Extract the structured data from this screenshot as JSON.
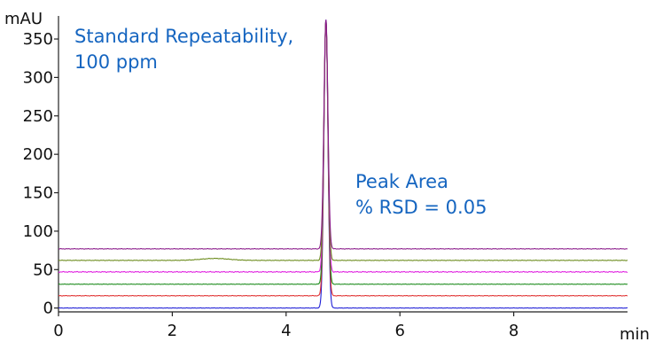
{
  "chart_data": {
    "type": "line",
    "title": "",
    "xlabel": "min",
    "ylabel": "mAU",
    "xlim": [
      0,
      10
    ],
    "ylim": [
      -5,
      380
    ],
    "x_ticks": [
      0,
      2,
      4,
      6,
      8
    ],
    "y_ticks": [
      0,
      50,
      100,
      150,
      200,
      250,
      300,
      350
    ],
    "grid": false,
    "legend": "none",
    "peak": {
      "x": 4.7,
      "width": 0.035
    },
    "annotations": [
      {
        "lines": [
          "Standard Repeatability,",
          "100 ppm"
        ],
        "color": "#1565c0"
      },
      {
        "lines": [
          "Peak Area",
          "% RSD = 0.05"
        ],
        "color": "#1565c0"
      }
    ],
    "series": [
      {
        "baseline": 0,
        "peak_height": 375,
        "color": "#1f1fd6",
        "noise": 0.25
      },
      {
        "baseline": 16,
        "peak_height": 356,
        "color": "#e03030",
        "noise": 0.35
      },
      {
        "baseline": 31,
        "peak_height": 342,
        "color": "#1a8a1a",
        "noise": 0.3
      },
      {
        "baseline": 47,
        "peak_height": 326,
        "color": "#e020e0",
        "noise": 0.6
      },
      {
        "baseline": 62,
        "peak_height": 312,
        "color": "#6a8a1a",
        "noise": 0.35,
        "bump": {
          "x": 2.75,
          "height": 2.5,
          "width": 0.25
        }
      },
      {
        "baseline": 77,
        "peak_height": 298,
        "color": "#8a1a8a",
        "noise": 0.35
      }
    ]
  }
}
